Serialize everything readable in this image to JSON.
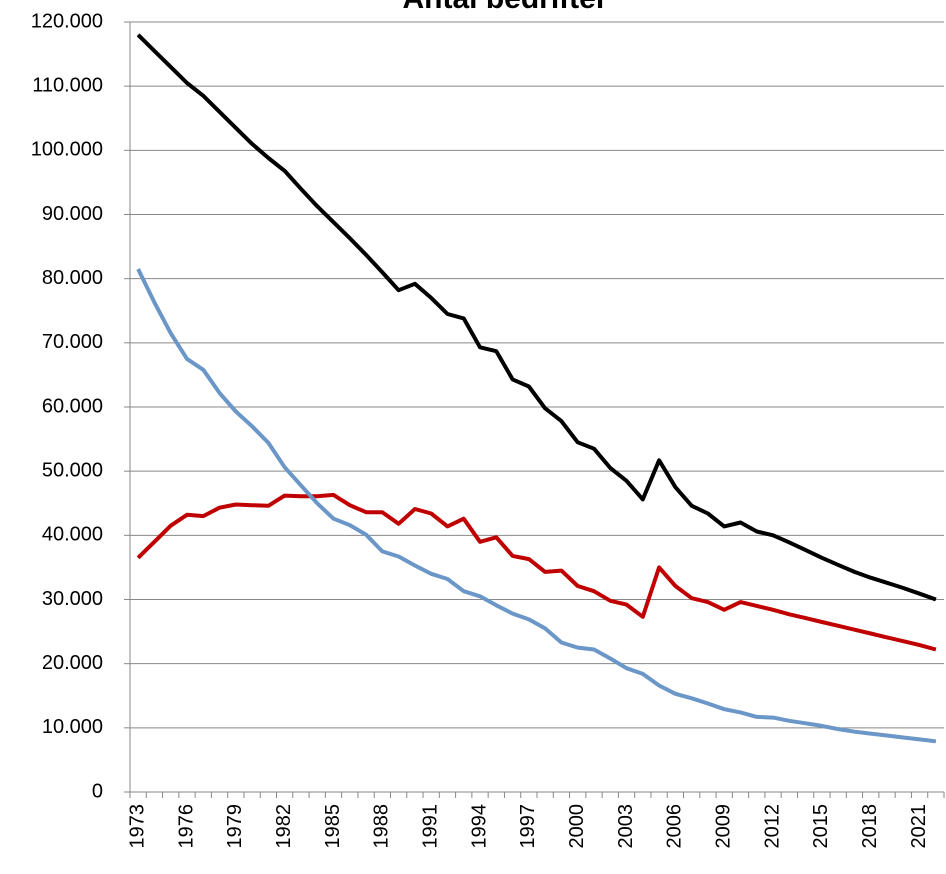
{
  "chart_data": {
    "type": "line",
    "title": "Antal bedrifter",
    "categories": [
      "1973",
      null,
      null,
      "1976",
      null,
      null,
      "1979",
      null,
      null,
      "1982",
      null,
      null,
      "1985",
      null,
      null,
      "1988",
      null,
      null,
      "1991",
      null,
      null,
      "1994",
      null,
      null,
      "1997",
      null,
      null,
      "2000",
      null,
      null,
      "2003",
      null,
      null,
      "2006",
      null,
      null,
      "2009",
      null,
      null,
      "2012",
      null,
      null,
      "2015",
      null,
      null,
      "2018",
      null,
      null,
      "2021",
      null
    ],
    "series": [
      {
        "color": "#000000",
        "values": [
          118000,
          115500,
          113000,
          110500,
          108500,
          106000,
          103500,
          101000,
          98800,
          96800,
          94000,
          91300,
          88800,
          86300,
          83700,
          81000,
          78200,
          79200,
          77000,
          74500,
          73800,
          69300,
          68700,
          64300,
          63200,
          59800,
          57800,
          54500,
          53500,
          50500,
          48500,
          45600,
          51700,
          47500,
          44600,
          43400,
          41400,
          42000,
          40600,
          40000,
          38900,
          37700,
          36500,
          35400,
          34300,
          33400,
          32600,
          31800,
          30900,
          30000
        ]
      },
      {
        "color": "#c00000",
        "values": [
          36500,
          39000,
          41500,
          43200,
          43000,
          44300,
          44800,
          44700,
          44600,
          46200,
          46100,
          46100,
          46300,
          44700,
          43600,
          43600,
          41800,
          44100,
          43400,
          41400,
          42600,
          39000,
          39700,
          36800,
          36300,
          34300,
          34500,
          32100,
          31300,
          29800,
          29200,
          27300,
          35000,
          32100,
          30200,
          29600,
          28400,
          29600,
          29000,
          28400,
          27700,
          27100,
          26500,
          25900,
          25300,
          24700,
          24100,
          23500,
          22900,
          22200
        ]
      },
      {
        "color": "#6a96c8",
        "values": [
          81500,
          76300,
          71500,
          67500,
          65800,
          62200,
          59300,
          57000,
          54400,
          50600,
          47800,
          45000,
          42600,
          41600,
          40100,
          37500,
          36700,
          35300,
          34000,
          33200,
          31300,
          30500,
          29100,
          27800,
          26900,
          25500,
          23300,
          22500,
          22200,
          20800,
          19300,
          18400,
          16600,
          15300,
          14600,
          13800,
          12900,
          12400,
          11700,
          11600,
          11100,
          10700,
          10300,
          9800,
          9400,
          9100,
          8800,
          8500,
          8200,
          7900
        ]
      }
    ],
    "ylim": [
      0,
      120000
    ],
    "yticks": [
      0,
      {
        "value": 10000,
        "label": "10.000"
      },
      {
        "value": 20000,
        "label": "20.000"
      },
      {
        "value": 30000,
        "label": "30.000"
      },
      {
        "value": 40000,
        "label": "40.000"
      },
      {
        "value": 50000,
        "label": "50.000"
      },
      {
        "value": 60000,
        "label": "60.000"
      },
      {
        "value": 70000,
        "label": "70.000"
      },
      {
        "value": 80000,
        "label": "80.000"
      },
      {
        "value": 90000,
        "label": "90.000"
      },
      {
        "value": 100000,
        "label": "100.000"
      },
      {
        "value": 110000,
        "label": "110.000"
      },
      {
        "value": 120000,
        "label": "120.000"
      }
    ],
    "grid": true
  }
}
